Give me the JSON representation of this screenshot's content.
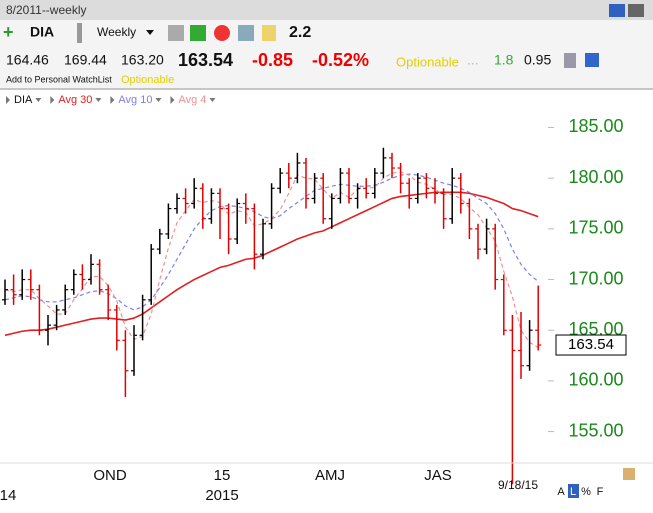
{
  "header": {
    "title": "8/2011--weekly",
    "symbol": "DIA",
    "period": "Weekly",
    "indicator": "2.2",
    "quote": [
      "164.46",
      "169.44",
      "163.20"
    ],
    "last": "163.54",
    "change": "-0.85",
    "change_pct": "-0.52%",
    "optionable": "Optionable",
    "dots": "...",
    "val1": "1.8",
    "val2": "0.95",
    "watchlist": "Add to Personal WatchList",
    "optionable2": "Optionable"
  },
  "chart_data": {
    "type": "ohlc",
    "name": "DIA",
    "up_color": "#000000",
    "down_color": "#e00000",
    "ohlc": {
      "open": [
        168,
        169,
        168.5,
        170,
        169,
        165,
        165.5,
        167,
        169,
        170.5,
        170,
        171.5,
        169,
        167,
        164,
        161,
        164.5,
        168,
        173,
        174.5,
        177,
        178,
        177.5,
        179,
        176,
        178.5,
        177,
        174,
        177.5,
        177,
        172.5,
        175.5,
        179,
        180.5,
        180,
        181.5,
        178,
        180,
        176,
        178,
        180.5,
        178,
        179,
        178.5,
        180.5,
        182,
        181,
        179.5,
        178,
        180,
        179,
        178.5,
        176,
        180,
        177.5,
        175,
        173,
        175,
        170,
        165,
        163,
        161.5,
        165
      ],
      "high": [
        170,
        170.5,
        171,
        171,
        169.5,
        166.5,
        167.5,
        169.5,
        171,
        171.5,
        172.5,
        172,
        169.5,
        167.5,
        165,
        165.5,
        168.5,
        173.5,
        175,
        177.5,
        178.5,
        179,
        180,
        179.5,
        179,
        179,
        177.5,
        178,
        178.5,
        177.5,
        176,
        179.5,
        181,
        181.5,
        182.5,
        182,
        180.5,
        180.5,
        178.5,
        181,
        181,
        179.5,
        180,
        181,
        183,
        182.5,
        181.5,
        180,
        180.5,
        180.5,
        180,
        179,
        181,
        180.5,
        178,
        175.5,
        176,
        175.5,
        170.5,
        166.5,
        166.8,
        166,
        169.4
      ],
      "low": [
        167.5,
        167.5,
        168,
        168,
        164.5,
        163.5,
        165,
        166.5,
        168.5,
        169,
        169.5,
        168.5,
        166,
        163,
        158.4,
        160.5,
        164,
        167.5,
        172.5,
        174,
        176.5,
        176.5,
        177,
        175,
        175.5,
        174,
        172.5,
        173.5,
        175.5,
        171,
        172,
        175,
        178.5,
        179,
        179.5,
        177,
        177.5,
        175.5,
        175,
        177.5,
        177.5,
        177,
        178,
        178,
        180,
        180,
        178.5,
        177,
        177.5,
        178,
        177.5,
        175,
        175.5,
        176.5,
        174,
        172,
        172.5,
        169,
        164.5,
        149.8,
        160.2,
        161,
        163
      ],
      "close": [
        169,
        168.5,
        170,
        169,
        165,
        165.5,
        167,
        169,
        170.5,
        170,
        171.5,
        169,
        167,
        164,
        161,
        164.5,
        168,
        173,
        174.5,
        177,
        178,
        177.5,
        179,
        176,
        178.5,
        177,
        174,
        177.5,
        177,
        172.5,
        175.5,
        179,
        180.5,
        180,
        181.5,
        178,
        180,
        176,
        178,
        180.5,
        178,
        179,
        178.5,
        180.5,
        182,
        181,
        179.5,
        178,
        180,
        179,
        178.5,
        176,
        180,
        177.5,
        175,
        173,
        175,
        170,
        165,
        163,
        161.5,
        165,
        163.54
      ]
    },
    "series": [
      {
        "name": "Avg 30",
        "color": "#e02020",
        "dash": false,
        "values": [
          164.5,
          164.7,
          164.9,
          165,
          165,
          165.1,
          165.3,
          165.5,
          165.7,
          165.9,
          166.1,
          166.2,
          166.2,
          166.1,
          166,
          166.2,
          166.6,
          167.2,
          167.8,
          168.4,
          169,
          169.5,
          170,
          170.4,
          170.8,
          171.2,
          171.4,
          171.7,
          172,
          172.1,
          172.4,
          172.8,
          173.2,
          173.6,
          174,
          174.3,
          174.6,
          174.8,
          175.2,
          175.6,
          176,
          176.4,
          176.8,
          177.2,
          177.6,
          178,
          178.2,
          178.3,
          178.4,
          178.5,
          178.6,
          178.6,
          178.6,
          178.6,
          178.5,
          178.3,
          178.1,
          177.8,
          177.5,
          177,
          176.8,
          176.5,
          176.2
        ]
      },
      {
        "name": "Avg 10",
        "color": "#8080e0",
        "dash": true,
        "values": [
          168,
          168.2,
          168.4,
          168.3,
          168,
          167.8,
          167.8,
          168,
          168.2,
          168.5,
          168.8,
          168.9,
          168.6,
          168.1,
          167.4,
          167,
          167.3,
          168,
          169.2,
          170.5,
          172,
          173.5,
          175,
          176,
          176.8,
          177.2,
          177.3,
          177.2,
          177,
          176.7,
          176.2,
          176,
          176.3,
          177,
          177.6,
          178.2,
          178.8,
          179,
          179.2,
          179.4,
          179.3,
          179.2,
          179.2,
          179.3,
          179.6,
          180,
          180.3,
          180.4,
          180.3,
          180.1,
          179.8,
          179.5,
          179.3,
          179,
          178.6,
          178,
          177.5,
          176.5,
          175,
          173,
          171.5,
          170.5,
          169.8
        ]
      },
      {
        "name": "Avg 4",
        "color": "#f09090",
        "dash": true,
        "values": [
          169,
          168.8,
          169,
          169,
          168.1,
          167.4,
          166.6,
          166.6,
          168,
          169.1,
          170.3,
          170.3,
          169.4,
          167.9,
          165.3,
          164.1,
          164.4,
          166.6,
          170,
          173.1,
          175.6,
          176.8,
          177.9,
          177.6,
          177.8,
          177.6,
          176.4,
          176.8,
          176.6,
          175.3,
          175.5,
          176,
          176.9,
          178.5,
          180.3,
          180,
          179.9,
          178.9,
          178,
          178.6,
          178.1,
          178.9,
          179,
          179.1,
          180,
          180.5,
          180.6,
          180.3,
          179.6,
          179.4,
          178.9,
          178.4,
          178.4,
          178,
          177.1,
          176.4,
          175.1,
          173.8,
          170.8,
          168.3,
          165,
          163.8,
          163.3
        ]
      }
    ],
    "ylim": [
      152,
      188.5
    ],
    "yticks": [
      {
        "value": 155,
        "label": "155.00"
      },
      {
        "value": 160,
        "label": "160.00"
      },
      {
        "value": 165,
        "label": "165.00"
      },
      {
        "value": 170,
        "label": "170.00"
      },
      {
        "value": 175,
        "label": "175.00"
      },
      {
        "value": 180,
        "label": "180.00"
      },
      {
        "value": 185,
        "label": "185.00"
      }
    ],
    "last_label": "163.54",
    "x_labels": [
      "14",
      "OND",
      "15",
      "2015",
      "AMJ",
      "JAS",
      "9/18/15"
    ],
    "footer": [
      "A",
      "L",
      "%",
      "F"
    ]
  }
}
